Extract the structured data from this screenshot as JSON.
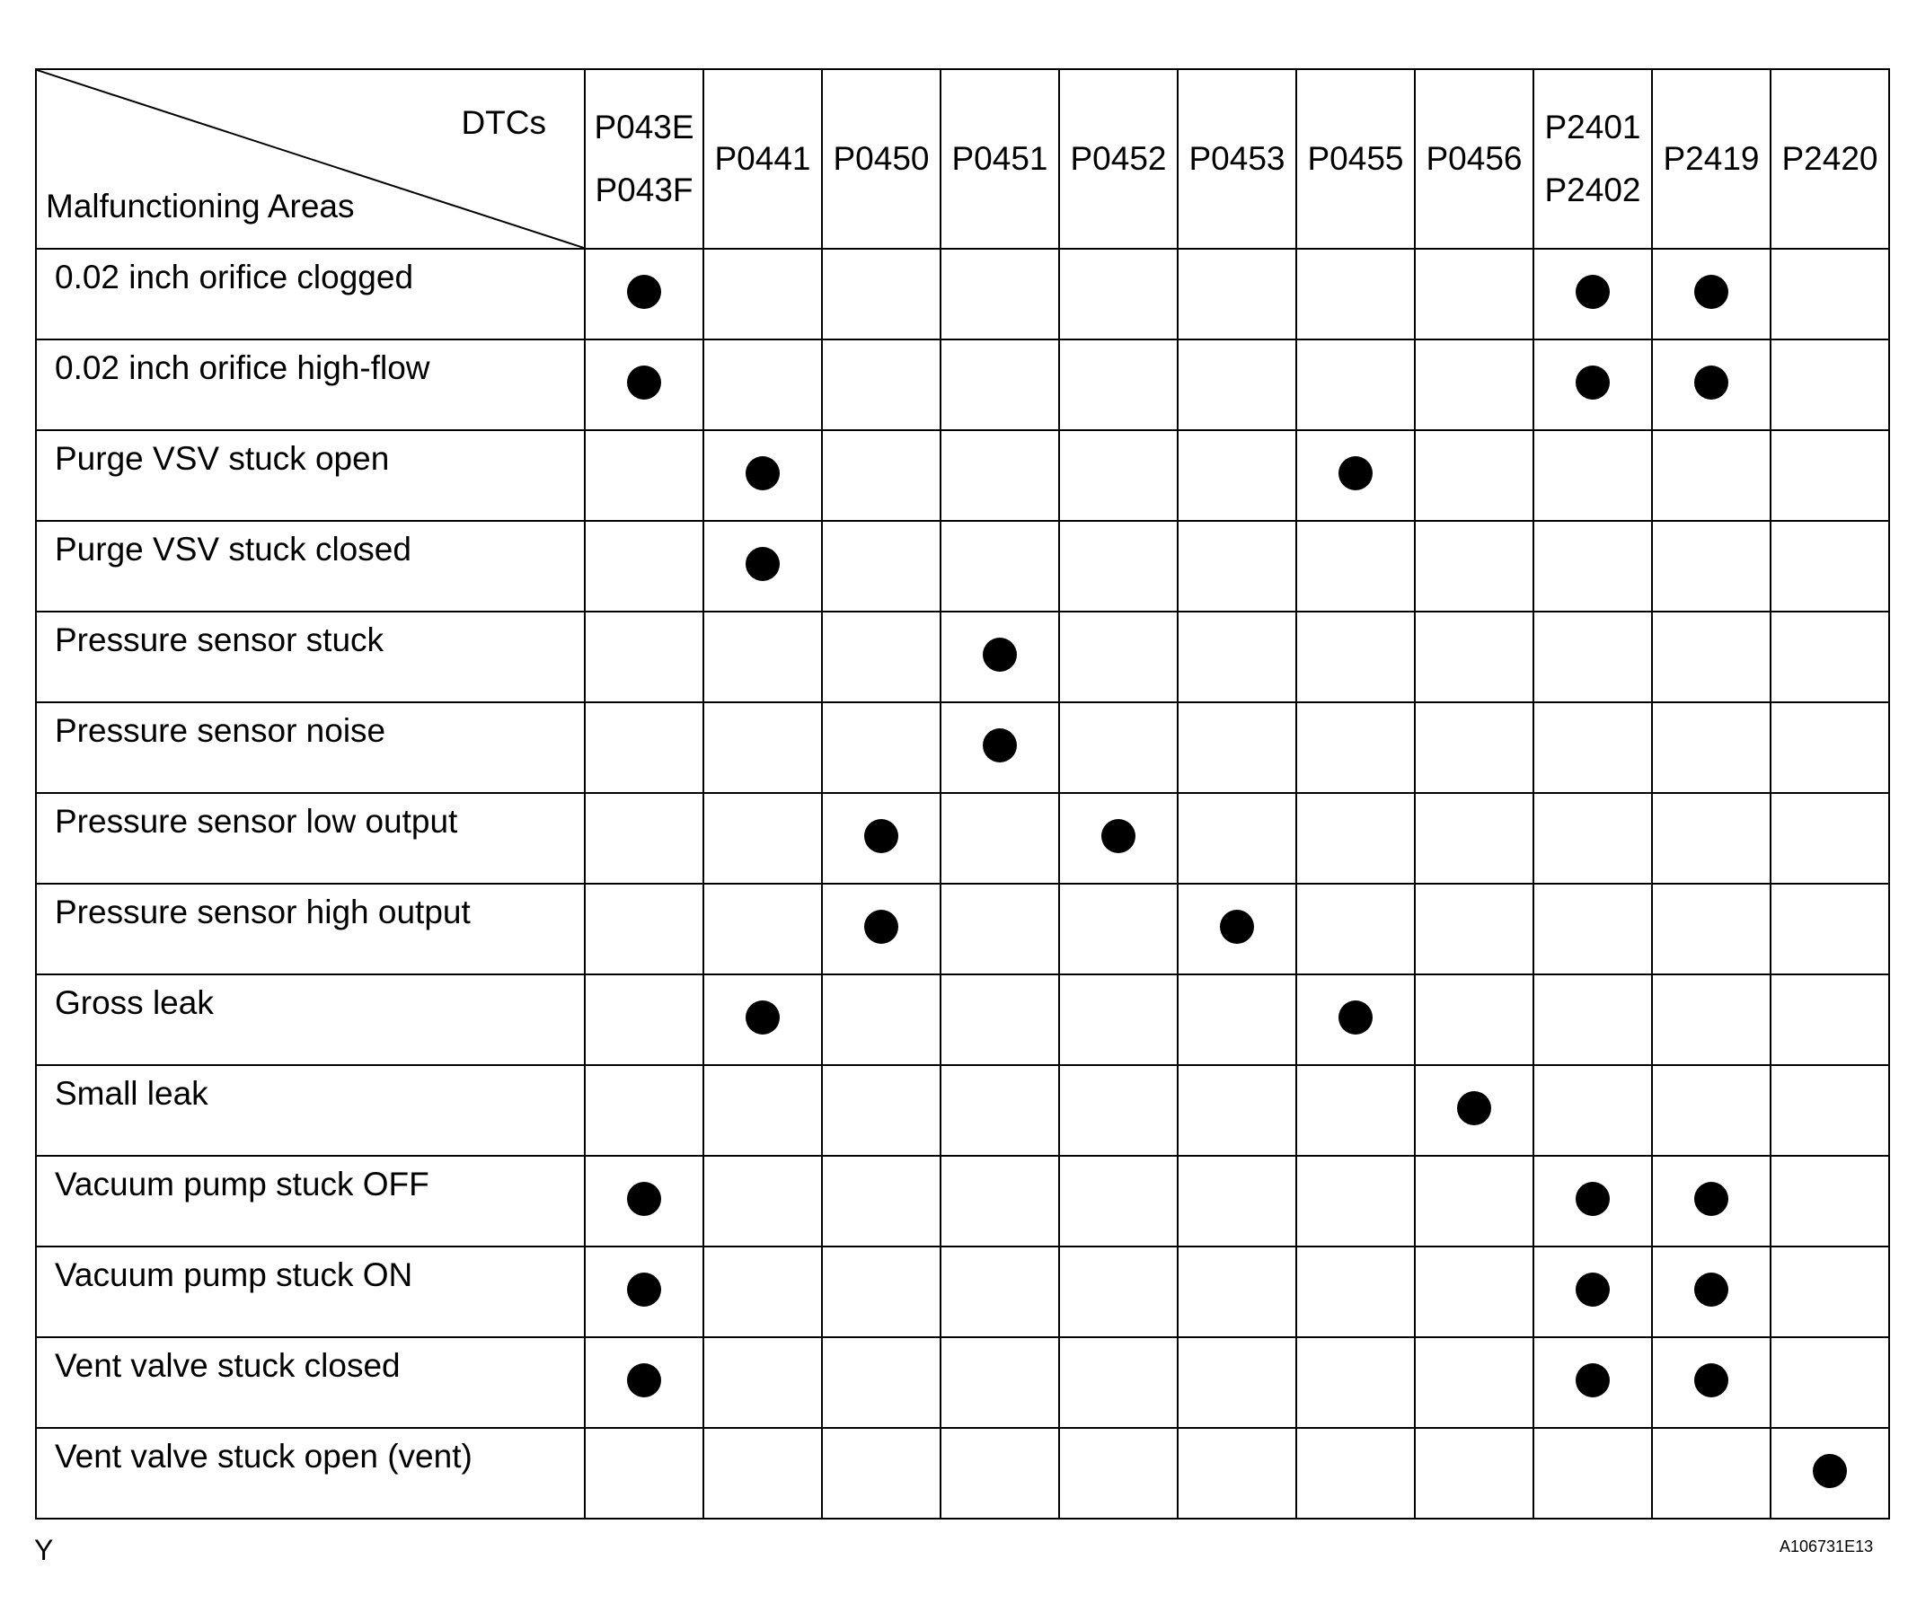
{
  "header": {
    "dtcs_label": "DTCs",
    "areas_label": "Malfunctioning Areas",
    "columns": [
      {
        "lines": [
          "P043E",
          "P043F"
        ]
      },
      {
        "lines": [
          "P0441"
        ]
      },
      {
        "lines": [
          "P0450"
        ]
      },
      {
        "lines": [
          "P0451"
        ]
      },
      {
        "lines": [
          "P0452"
        ]
      },
      {
        "lines": [
          "P0453"
        ]
      },
      {
        "lines": [
          "P0455"
        ]
      },
      {
        "lines": [
          "P0456"
        ]
      },
      {
        "lines": [
          "P2401",
          "P2402"
        ]
      },
      {
        "lines": [
          "P2419"
        ]
      },
      {
        "lines": [
          "P2420"
        ]
      }
    ]
  },
  "rows": [
    {
      "area": "0.02 inch orifice clogged",
      "marks": [
        1,
        0,
        0,
        0,
        0,
        0,
        0,
        0,
        1,
        1,
        0
      ]
    },
    {
      "area": "0.02 inch orifice high-flow",
      "marks": [
        1,
        0,
        0,
        0,
        0,
        0,
        0,
        0,
        1,
        1,
        0
      ]
    },
    {
      "area": "Purge VSV stuck open",
      "marks": [
        0,
        1,
        0,
        0,
        0,
        0,
        1,
        0,
        0,
        0,
        0
      ]
    },
    {
      "area": "Purge VSV stuck closed",
      "marks": [
        0,
        1,
        0,
        0,
        0,
        0,
        0,
        0,
        0,
        0,
        0
      ]
    },
    {
      "area": "Pressure sensor stuck",
      "marks": [
        0,
        0,
        0,
        1,
        0,
        0,
        0,
        0,
        0,
        0,
        0
      ]
    },
    {
      "area": "Pressure sensor noise",
      "marks": [
        0,
        0,
        0,
        1,
        0,
        0,
        0,
        0,
        0,
        0,
        0
      ]
    },
    {
      "area": "Pressure sensor low output",
      "marks": [
        0,
        0,
        1,
        0,
        1,
        0,
        0,
        0,
        0,
        0,
        0
      ]
    },
    {
      "area": "Pressure sensor high output",
      "marks": [
        0,
        0,
        1,
        0,
        0,
        1,
        0,
        0,
        0,
        0,
        0
      ]
    },
    {
      "area": "Gross leak",
      "marks": [
        0,
        1,
        0,
        0,
        0,
        0,
        1,
        0,
        0,
        0,
        0
      ]
    },
    {
      "area": "Small leak",
      "marks": [
        0,
        0,
        0,
        0,
        0,
        0,
        0,
        1,
        0,
        0,
        0
      ]
    },
    {
      "area": "Vacuum pump stuck OFF",
      "marks": [
        1,
        0,
        0,
        0,
        0,
        0,
        0,
        0,
        1,
        1,
        0
      ]
    },
    {
      "area": "Vacuum pump stuck ON",
      "marks": [
        1,
        0,
        0,
        0,
        0,
        0,
        0,
        0,
        1,
        1,
        0
      ]
    },
    {
      "area": "Vent valve stuck closed",
      "marks": [
        1,
        0,
        0,
        0,
        0,
        0,
        0,
        0,
        1,
        1,
        0
      ]
    },
    {
      "area": "Vent valve stuck open (vent)",
      "marks": [
        0,
        0,
        0,
        0,
        0,
        0,
        0,
        0,
        0,
        0,
        1
      ]
    }
  ],
  "footer": {
    "left_mark": "Y",
    "figure_id": "A106731E13"
  }
}
